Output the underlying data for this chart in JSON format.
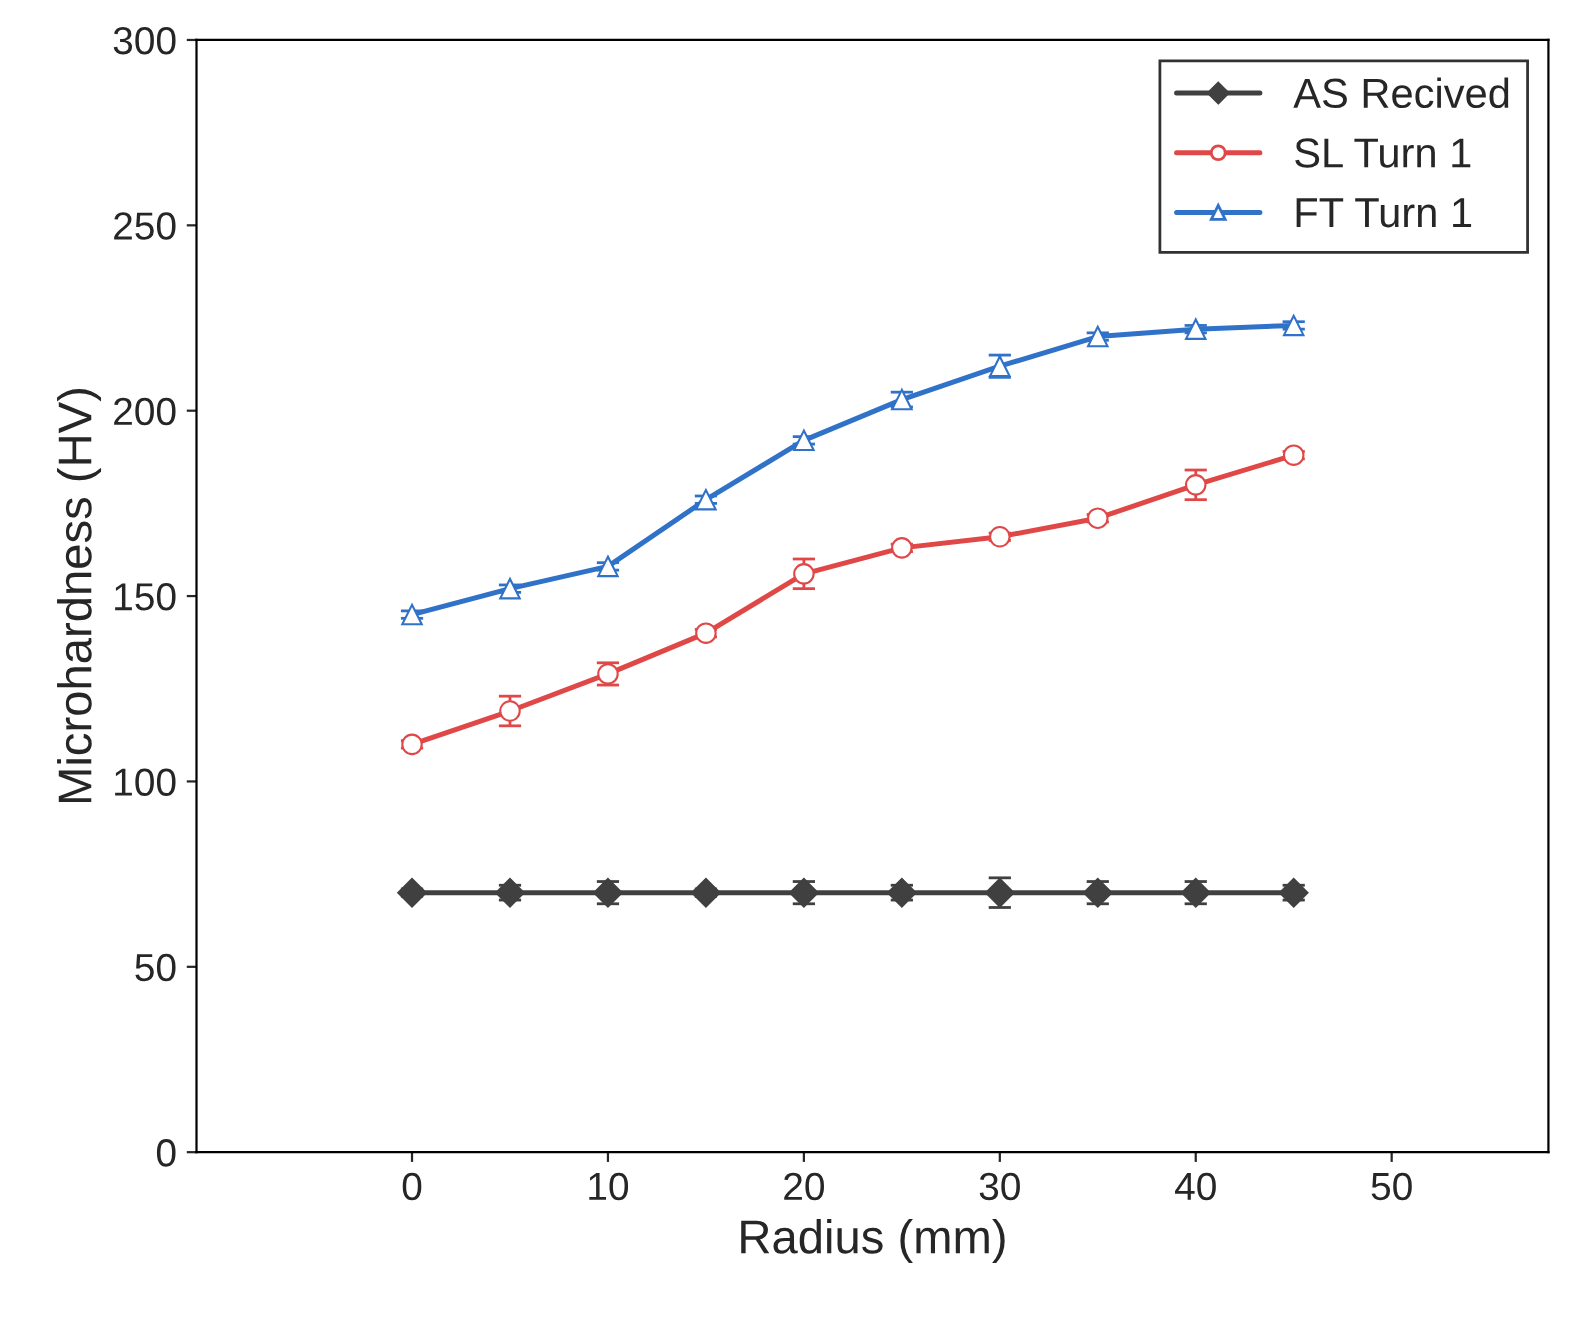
{
  "chart_data": {
    "type": "line",
    "xlabel": "Radius (mm)",
    "ylabel": "Microhardness (HV)",
    "x": [
      0,
      5,
      10,
      15,
      20,
      25,
      30,
      35,
      40,
      45
    ],
    "series": [
      {
        "name": "AS Recived",
        "color": "#404040",
        "marker": "diamond",
        "values": [
          70,
          70,
          70,
          70,
          70,
          70,
          70,
          70,
          70,
          70
        ],
        "errors": [
          1,
          2,
          3,
          1,
          3,
          2,
          4,
          3,
          3,
          2
        ]
      },
      {
        "name": "SL Turn 1",
        "color": "#e04848",
        "marker": "circle",
        "values": [
          110,
          119,
          129,
          140,
          156,
          163,
          166,
          171,
          180,
          188
        ],
        "errors": [
          1,
          4,
          3,
          1,
          4,
          1,
          1,
          1,
          4,
          1
        ]
      },
      {
        "name": "FT Turn 1",
        "color": "#2f72c8",
        "marker": "triangle",
        "values": [
          145,
          152,
          158,
          176,
          192,
          203,
          212,
          220,
          222,
          223
        ],
        "errors": [
          1,
          1,
          1,
          1,
          1,
          2,
          3,
          1,
          1,
          1
        ]
      }
    ],
    "xlim": [
      -11,
      58
    ],
    "ylim": [
      0,
      300
    ],
    "xticks": [
      0,
      10,
      20,
      30,
      40,
      50
    ],
    "yticks": [
      0,
      50,
      100,
      150,
      200,
      250,
      300
    ],
    "grid": false,
    "legend": "top right",
    "line_style": "solid"
  }
}
